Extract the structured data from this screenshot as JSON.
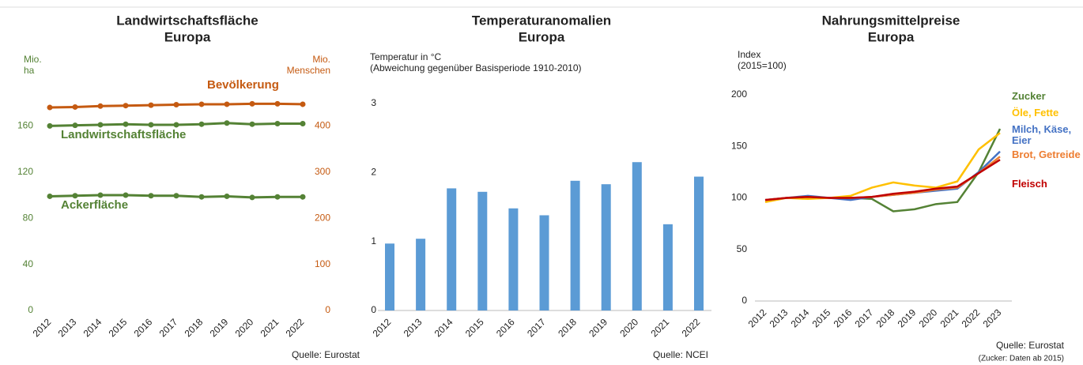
{
  "chart_data": [
    {
      "type": "line",
      "title": [
        "Landwirtschaftsfläche",
        "Europa"
      ],
      "ylabel": [
        "Mio.",
        "ha"
      ],
      "y2label": [
        "Mio.",
        "Menschen"
      ],
      "categories": [
        "2012",
        "2013",
        "2014",
        "2015",
        "2016",
        "2017",
        "2018",
        "2019",
        "2020",
        "2021",
        "2022"
      ],
      "ylim": [
        0,
        200
      ],
      "yticks": [
        0,
        40,
        80,
        120,
        160
      ],
      "ytick_color": "#548235",
      "y2lim": [
        0,
        500
      ],
      "y2ticks": [
        0,
        100,
        200,
        300,
        400
      ],
      "y2tick_color": "#c55a11",
      "markers": true,
      "series": [
        {
          "name": "Bevölkerung",
          "color": "#c55a11",
          "axis": "y2",
          "values": [
            440,
            441,
            443,
            444,
            445,
            446,
            447,
            447,
            448,
            448,
            447
          ]
        },
        {
          "name": "Landwirtschaftsfläche",
          "color": "#548235",
          "values": [
            160,
            160.5,
            161,
            161.5,
            161,
            161,
            161.5,
            162.5,
            161.5,
            162,
            162
          ]
        },
        {
          "name": "Ackerfläche",
          "color": "#548235",
          "values": [
            99,
            99.5,
            100,
            100,
            99.5,
            99.5,
            98.5,
            99,
            98,
            98.5,
            98.5
          ]
        }
      ],
      "source": "Quelle: Eurostat"
    },
    {
      "type": "bar",
      "title": [
        "Temperaturanomalien",
        "Europa"
      ],
      "ylabel": [
        "Temperatur in °C",
        "(Abweichung gegenüber Basisperiode 1910-2010)"
      ],
      "categories": [
        "2012",
        "2013",
        "2014",
        "2015",
        "2016",
        "2017",
        "2018",
        "2019",
        "2020",
        "2021",
        "2022"
      ],
      "ylim": [
        0,
        3
      ],
      "yticks": [
        0,
        1,
        2,
        3
      ],
      "color": "#5b9bd5",
      "values": [
        0.97,
        1.04,
        1.77,
        1.72,
        1.48,
        1.38,
        1.88,
        1.83,
        2.15,
        1.25,
        1.94
      ],
      "source": "Quelle: NCEI"
    },
    {
      "type": "line",
      "title": [
        "Nahrungsmittelpreise",
        "Europa"
      ],
      "ylabel": [
        "Index",
        "(2015=100)"
      ],
      "categories": [
        "2012",
        "2013",
        "2014",
        "2015",
        "2016",
        "2017",
        "2018",
        "2019",
        "2020",
        "2021",
        "2022",
        "2023"
      ],
      "ylim": [
        0,
        200
      ],
      "yticks": [
        0,
        50,
        100,
        150,
        200
      ],
      "series": [
        {
          "name": "Zucker",
          "color": "#548235",
          "values": [
            null,
            null,
            null,
            100,
            100,
            99,
            87,
            89,
            94,
            96,
            125,
            167
          ]
        },
        {
          "name": "Öle, Fette",
          "color": "#ffc000",
          "values": [
            96,
            100,
            99,
            100,
            102,
            110,
            115,
            112,
            110,
            116,
            147,
            163
          ]
        },
        {
          "name": "Milch, Käse, Eier",
          "color": "#4472c4",
          "values": [
            98,
            100,
            102,
            100,
            98,
            101,
            103,
            105,
            107,
            109,
            125,
            145
          ]
        },
        {
          "name": "Brot, Getreide",
          "color": "#ed7d31",
          "values": [
            98,
            100,
            101,
            100,
            100,
            101,
            103,
            105,
            108,
            110,
            124,
            140
          ]
        },
        {
          "name": "Fleisch",
          "color": "#c00000",
          "values": [
            98,
            100,
            101,
            100,
            100,
            101,
            104,
            106,
            109,
            111,
            124,
            137
          ]
        }
      ],
      "source": "Quelle: Eurostat",
      "note": "(Zucker: Daten ab 2015)"
    }
  ]
}
